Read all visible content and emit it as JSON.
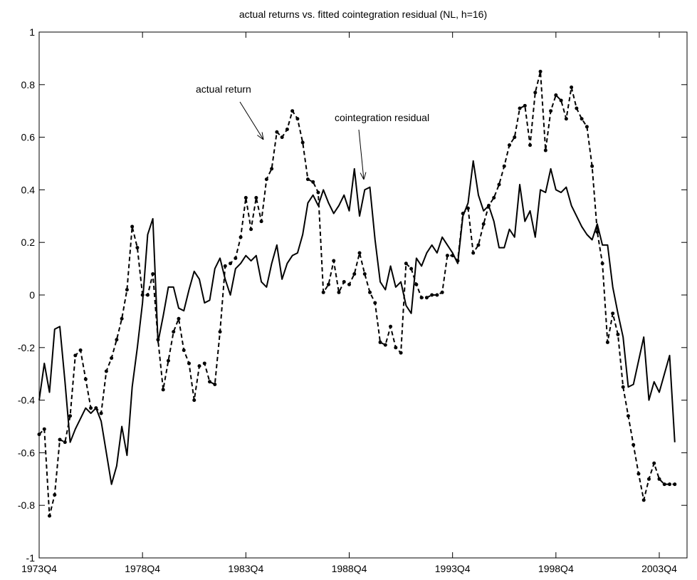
{
  "chart_data": {
    "type": "line",
    "title": "actual returns vs. fitted cointegration residual (NL, h=16)",
    "annotations": [
      "actual return",
      "cointegration residual"
    ],
    "categories": [
      "1973Q4",
      null,
      null,
      null,
      null,
      null,
      null,
      null,
      null,
      null,
      null,
      null,
      null,
      null,
      null,
      null,
      null,
      null,
      null,
      null,
      "1978Q4",
      null,
      null,
      null,
      null,
      null,
      null,
      null,
      null,
      null,
      null,
      null,
      null,
      null,
      null,
      null,
      null,
      null,
      null,
      null,
      "1983Q4",
      null,
      null,
      null,
      null,
      null,
      null,
      null,
      null,
      null,
      null,
      null,
      null,
      null,
      null,
      null,
      null,
      null,
      null,
      null,
      "1988Q4",
      null,
      null,
      null,
      null,
      null,
      null,
      null,
      null,
      null,
      null,
      null,
      null,
      null,
      null,
      null,
      null,
      null,
      null,
      null,
      "1993Q4",
      null,
      null,
      null,
      null,
      null,
      null,
      null,
      null,
      null,
      null,
      null,
      null,
      null,
      null,
      null,
      null,
      null,
      null,
      null,
      "1998Q4",
      null,
      null,
      null,
      null,
      null,
      null,
      null,
      null,
      null,
      null,
      null,
      null,
      null,
      null,
      null,
      null,
      null,
      null,
      null,
      "2003Q4",
      null,
      null,
      null
    ],
    "series": [
      {
        "name": "actual return",
        "color": "#000000",
        "dash": true,
        "markers": true,
        "values": [
          -0.53,
          -0.51,
          -0.84,
          -0.76,
          -0.55,
          -0.56,
          -0.46,
          -0.23,
          -0.21,
          -0.32,
          -0.43,
          -0.43,
          -0.45,
          -0.29,
          -0.24,
          -0.17,
          -0.09,
          0.02,
          0.26,
          0.18,
          0.0,
          0.0,
          0.08,
          -0.17,
          -0.36,
          -0.25,
          -0.14,
          -0.09,
          -0.21,
          -0.26,
          -0.4,
          -0.27,
          -0.26,
          -0.33,
          -0.34,
          -0.14,
          0.11,
          0.12,
          0.14,
          0.22,
          0.37,
          0.25,
          0.37,
          0.28,
          0.44,
          0.48,
          0.62,
          0.6,
          0.63,
          0.7,
          0.67,
          0.58,
          0.44,
          0.43,
          0.39,
          0.01,
          0.04,
          0.13,
          0.01,
          0.05,
          0.04,
          0.08,
          0.16,
          0.08,
          0.01,
          -0.03,
          -0.18,
          -0.19,
          -0.12,
          -0.2,
          -0.22,
          0.12,
          0.1,
          0.04,
          -0.01,
          -0.01,
          0.0,
          0.0,
          0.01,
          0.15,
          0.15,
          0.13,
          0.31,
          0.33,
          0.16,
          0.19,
          0.27,
          0.34,
          0.37,
          0.42,
          0.49,
          0.57,
          0.6,
          0.71,
          0.72,
          0.57,
          0.77,
          0.85,
          0.55,
          0.7,
          0.76,
          0.74,
          0.67,
          0.79,
          0.71,
          0.67,
          0.64,
          0.49,
          0.24,
          0.12,
          -0.18,
          -0.07,
          -0.15,
          -0.35,
          -0.46,
          -0.57,
          -0.68,
          -0.78,
          -0.7,
          -0.64,
          -0.7,
          -0.72,
          -0.72,
          -0.72
        ]
      },
      {
        "name": "cointegration residual",
        "color": "#000000",
        "dash": false,
        "markers": false,
        "values": [
          -0.4,
          -0.26,
          -0.37,
          -0.13,
          -0.12,
          -0.33,
          -0.56,
          -0.51,
          -0.47,
          -0.43,
          -0.45,
          -0.43,
          -0.48,
          -0.6,
          -0.72,
          -0.65,
          -0.5,
          -0.61,
          -0.35,
          -0.2,
          -0.03,
          0.23,
          0.29,
          -0.18,
          -0.08,
          0.03,
          0.03,
          -0.05,
          -0.06,
          0.02,
          0.09,
          0.06,
          -0.03,
          -0.02,
          0.1,
          0.14,
          0.06,
          0.0,
          0.1,
          0.12,
          0.15,
          0.13,
          0.15,
          0.05,
          0.03,
          0.12,
          0.19,
          0.06,
          0.12,
          0.15,
          0.16,
          0.23,
          0.35,
          0.38,
          0.34,
          0.4,
          0.35,
          0.31,
          0.34,
          0.38,
          0.32,
          0.48,
          0.3,
          0.4,
          0.41,
          0.21,
          0.05,
          0.02,
          0.11,
          0.03,
          0.05,
          -0.04,
          -0.07,
          0.14,
          0.11,
          0.16,
          0.19,
          0.16,
          0.22,
          0.19,
          0.16,
          0.12,
          0.3,
          0.35,
          0.51,
          0.38,
          0.32,
          0.34,
          0.28,
          0.18,
          0.18,
          0.25,
          0.22,
          0.42,
          0.28,
          0.32,
          0.22,
          0.4,
          0.39,
          0.48,
          0.4,
          0.39,
          0.41,
          0.34,
          0.3,
          0.26,
          0.23,
          0.21,
          0.27,
          0.19,
          0.19,
          0.03,
          -0.07,
          -0.16,
          -0.35,
          -0.34,
          -0.25,
          -0.16,
          -0.4,
          -0.33,
          -0.37,
          -0.3,
          -0.23,
          -0.56
        ]
      }
    ],
    "ylim": [
      -1,
      1
    ],
    "yticks": [
      -1,
      -0.8,
      -0.6,
      -0.4,
      -0.2,
      0,
      0.2,
      0.4,
      0.6,
      0.8,
      1
    ],
    "grid": false
  }
}
